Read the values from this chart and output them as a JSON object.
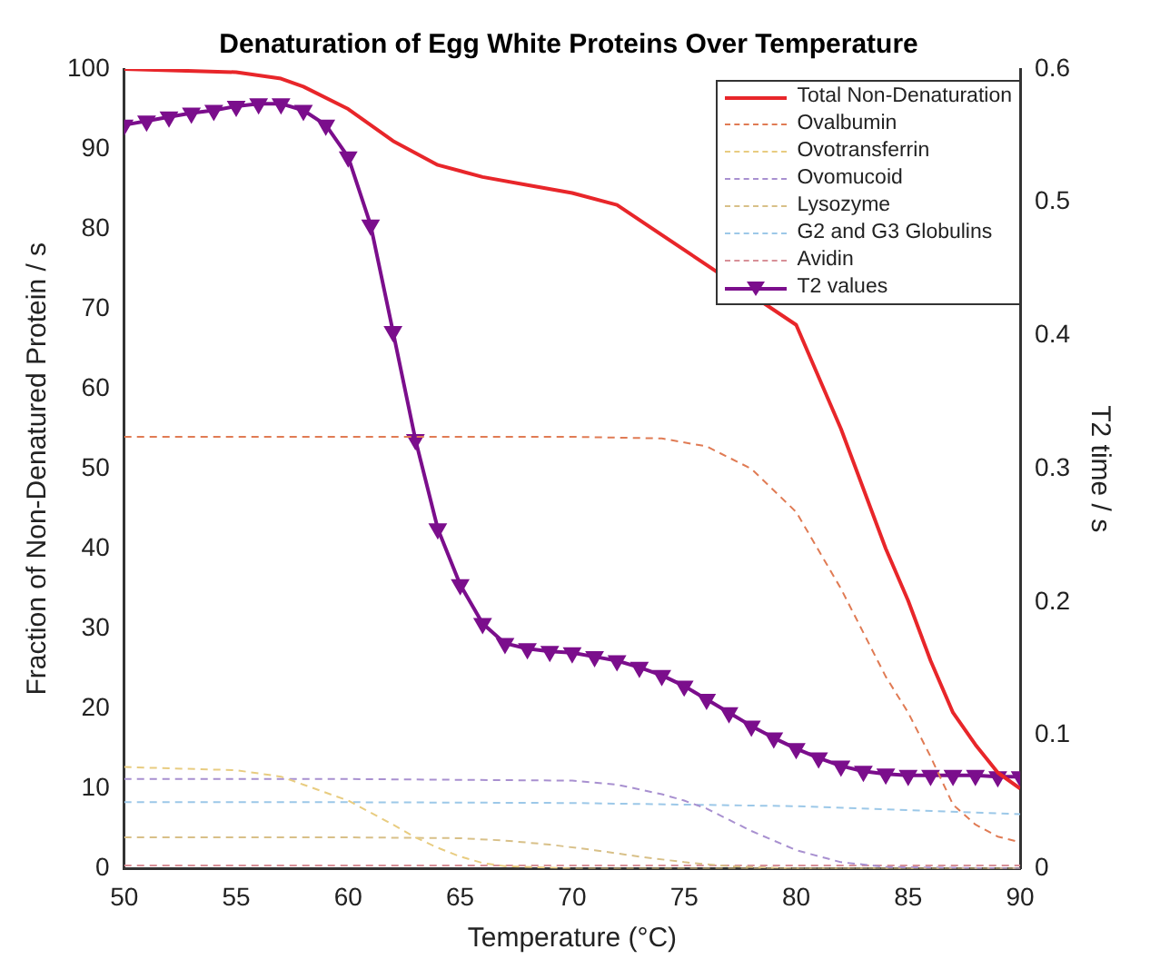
{
  "chart_data": {
    "type": "line",
    "title": "Denaturation of Egg White Proteins Over Temperature",
    "xlabel": "Temperature (°C)",
    "ylabel": "Fraction of Non-Denatured Protein / s",
    "y2label": "T2 time / s",
    "xlim": [
      50,
      90
    ],
    "xticks": [
      50,
      55,
      60,
      65,
      70,
      75,
      80,
      85,
      90
    ],
    "ylim": [
      0,
      100
    ],
    "yticks": [
      0,
      10,
      20,
      30,
      40,
      50,
      60,
      70,
      80,
      90,
      100
    ],
    "y2lim": [
      0,
      0.6
    ],
    "y2ticks": [
      0,
      0.1,
      0.2,
      0.3,
      0.4,
      0.5,
      0.6
    ],
    "grid": false,
    "legend": "top right",
    "series": [
      {
        "name": "Total Non-Denaturation",
        "color": "#e8262a",
        "line_style": "solid",
        "marker": "none",
        "x": [
          50,
          55,
          57,
          58,
          60,
          62,
          64,
          66,
          68,
          70,
          72,
          74,
          75,
          76,
          78,
          80,
          82,
          84,
          85,
          86,
          87,
          88,
          89,
          90
        ],
        "values": [
          100,
          99.6,
          98.8,
          97.8,
          95,
          91,
          88,
          86.5,
          85.5,
          84.5,
          83,
          null,
          null,
          null,
          null,
          68,
          55,
          40,
          33.5,
          26,
          19.5,
          15.5,
          12,
          10
        ]
      },
      {
        "name": "Ovalbumin",
        "color": "#e07b54",
        "line_style": "dashed",
        "marker": "none",
        "x": [
          50,
          60,
          70,
          74,
          76,
          78,
          80,
          82,
          84,
          85,
          86,
          87,
          88,
          89,
          90
        ],
        "values": [
          54,
          54,
          54,
          53.8,
          52.8,
          50,
          44.6,
          35,
          24,
          19.5,
          14,
          8,
          5.5,
          4,
          3.3
        ]
      },
      {
        "name": "Ovotransferrin",
        "color": "#e8cc80",
        "line_style": "dashed",
        "marker": "none",
        "x": [
          50,
          55,
          57,
          58,
          60,
          61,
          62,
          63,
          64,
          65,
          66,
          67,
          70,
          90
        ],
        "values": [
          12.7,
          12.3,
          11.5,
          10.5,
          8.5,
          7,
          5.5,
          3.9,
          2.6,
          1.5,
          0.7,
          0.3,
          0,
          0
        ]
      },
      {
        "name": "Ovomucoid",
        "color": "#a890d0",
        "line_style": "dashed",
        "marker": "none",
        "x": [
          50,
          60,
          70,
          72,
          74,
          75,
          76,
          78,
          80,
          82,
          84,
          90
        ],
        "values": [
          11.2,
          11.2,
          11,
          10.5,
          9.3,
          8.5,
          7.5,
          4.7,
          2.3,
          0.8,
          0.2,
          0
        ]
      },
      {
        "name": "Lysozyme",
        "color": "#d8c088",
        "line_style": "dashed",
        "marker": "none",
        "x": [
          50,
          60,
          65,
          67,
          69,
          71,
          73,
          75,
          77,
          80,
          90
        ],
        "values": [
          3.9,
          3.9,
          3.8,
          3.5,
          3,
          2.3,
          1.5,
          0.8,
          0.3,
          0,
          0
        ]
      },
      {
        "name": "G2 and G3 Globulins",
        "color": "#9cc8e8",
        "line_style": "dashed",
        "marker": "none",
        "x": [
          50,
          60,
          70,
          80,
          85,
          90
        ],
        "values": [
          8.3,
          8.3,
          8.2,
          7.8,
          7.3,
          6.8
        ]
      },
      {
        "name": "Avidin",
        "color": "#d89098",
        "line_style": "dashed",
        "marker": "none",
        "x": [
          50,
          70,
          90
        ],
        "values": [
          0.4,
          0.4,
          0.4
        ]
      },
      {
        "name": "T2 values",
        "color": "#7b0e8c",
        "line_style": "solid",
        "marker": "triangle",
        "axis": "y2",
        "x": [
          50,
          51,
          52,
          53,
          54,
          55,
          56,
          57,
          58,
          59,
          60,
          61,
          62,
          63,
          64,
          65,
          66,
          67,
          68,
          69,
          70,
          71,
          72,
          73,
          74,
          75,
          76,
          77,
          78,
          79,
          80,
          81,
          82,
          83,
          84,
          85,
          86,
          87,
          88,
          89,
          90
        ],
        "values": [
          0.558,
          0.561,
          0.564,
          0.567,
          0.569,
          0.572,
          0.574,
          0.574,
          0.569,
          0.558,
          0.534,
          0.483,
          0.403,
          0.322,
          0.255,
          0.213,
          0.184,
          0.169,
          0.165,
          0.163,
          0.162,
          0.159,
          0.156,
          0.151,
          0.145,
          0.137,
          0.127,
          0.117,
          0.107,
          0.098,
          0.09,
          0.083,
          0.077,
          0.073,
          0.071,
          0.07,
          0.07,
          0.07,
          0.07,
          0.069,
          0.069
        ]
      }
    ]
  }
}
